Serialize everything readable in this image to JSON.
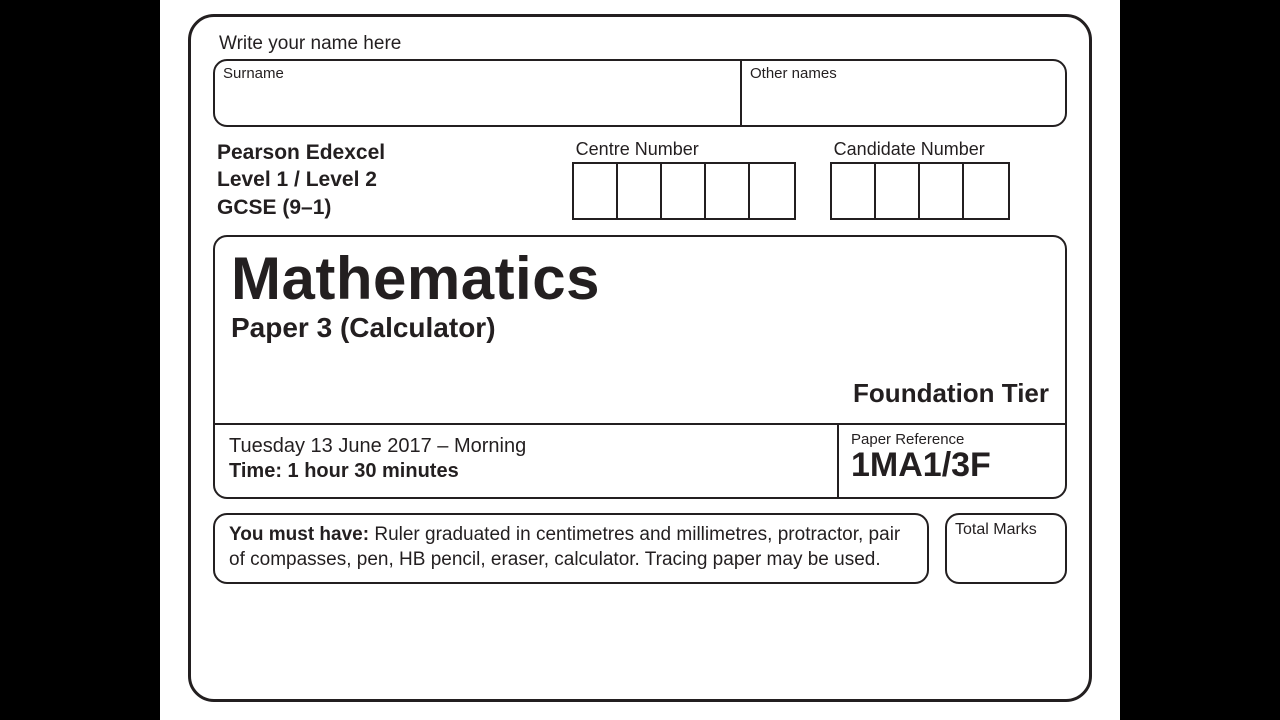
{
  "header": {
    "write_name": "Write your name here",
    "surname_label": "Surname",
    "other_names_label": "Other names"
  },
  "board": {
    "line1": "Pearson Edexcel",
    "line2": "Level 1 / Level 2",
    "line3": "GCSE (9–1)"
  },
  "numbers": {
    "centre_label": "Centre Number",
    "centre_boxes": 5,
    "candidate_label": "Candidate Number",
    "candidate_boxes": 4
  },
  "subject": {
    "title": "Mathematics",
    "paper": "Paper 3 (Calculator)",
    "tier": "Foundation Tier",
    "date": "Tuesday 13 June 2017 – Morning",
    "time": "Time: 1 hour 30 minutes",
    "paper_ref_label": "Paper Reference",
    "paper_ref_code": "1MA1/3F"
  },
  "equipment": {
    "prefix": "You must have:",
    "body": " Ruler graduated in centimetres and millimetres, protractor, pair of compasses, pen, HB pencil, eraser, calculator. Tracing paper may be used."
  },
  "total_marks_label": "Total Marks",
  "style": {
    "border_color": "#231f20",
    "background": "#ffffff",
    "page_background": "#000000"
  }
}
